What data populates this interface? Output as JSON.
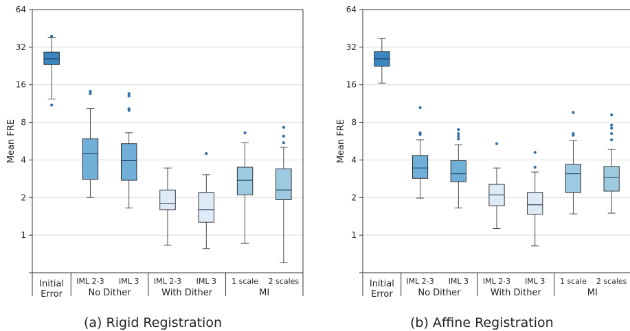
{
  "captions": [
    "(a) Rigid Registration",
    "(b) Affine Registration"
  ],
  "chart_data": [
    {
      "type": "box",
      "title": "",
      "ylabel": "Mean FRE",
      "yscale": "log2",
      "ylim": [
        0.5,
        64
      ],
      "yticks": [
        1,
        2,
        4,
        8,
        16,
        32,
        64
      ],
      "grid": "y",
      "categories": [
        "Initial\nError",
        "IML 2-3",
        "IML 3",
        "IML 2-3",
        "IML 3",
        "1 scale",
        "2 scales"
      ],
      "groups": [
        {
          "label": "",
          "span": [
            0,
            0
          ]
        },
        {
          "label": "No Dither",
          "span": [
            1,
            2
          ]
        },
        {
          "label": "With Dither",
          "span": [
            3,
            4
          ]
        },
        {
          "label": "MI",
          "span": [
            5,
            6
          ]
        }
      ],
      "boxes": [
        {
          "whislo": 12.3,
          "q1": 23.2,
          "med": 25.8,
          "q3": 29.2,
          "whishi": 38.3,
          "fliers": [
            11.0,
            39.2
          ],
          "color": "#3b86c0"
        },
        {
          "whislo": 2.0,
          "q1": 2.8,
          "med": 4.5,
          "q3": 5.9,
          "whishi": 10.3,
          "fliers": [
            13.6,
            14.2
          ],
          "color": "#6fafd8"
        },
        {
          "whislo": 1.65,
          "q1": 2.75,
          "med": 3.95,
          "q3": 5.4,
          "whishi": 6.6,
          "fliers": [
            10.0,
            10.3,
            13.0,
            13.6
          ],
          "color": "#6fafd8"
        },
        {
          "whislo": 0.83,
          "q1": 1.6,
          "med": 1.8,
          "q3": 2.3,
          "whishi": 3.45,
          "fliers": [],
          "color": "#deebf7"
        },
        {
          "whislo": 0.78,
          "q1": 1.27,
          "med": 1.6,
          "q3": 2.2,
          "whishi": 3.05,
          "fliers": [
            4.5
          ],
          "color": "#deebf7"
        },
        {
          "whislo": 0.86,
          "q1": 2.1,
          "med": 2.75,
          "q3": 3.5,
          "whishi": 5.5,
          "fliers": [
            6.6
          ],
          "color": "#9ecae1"
        },
        {
          "whislo": 0.6,
          "q1": 1.92,
          "med": 2.3,
          "q3": 3.4,
          "whishi": 5.05,
          "fliers": [
            5.5,
            6.2,
            7.3
          ],
          "color": "#9ecae1"
        }
      ]
    },
    {
      "type": "box",
      "title": "",
      "ylabel": "Mean FRE",
      "yscale": "log2",
      "ylim": [
        0.5,
        64
      ],
      "yticks": [
        1,
        2,
        4,
        8,
        16,
        32,
        64
      ],
      "grid": "y",
      "categories": [
        "Initial\nError",
        "IML 2-3",
        "IML 3",
        "IML 2-3",
        "IML 3",
        "1 scale",
        "2 scales"
      ],
      "groups": [
        {
          "label": "",
          "span": [
            0,
            0
          ]
        },
        {
          "label": "No Dither",
          "span": [
            1,
            2
          ]
        },
        {
          "label": "With Dither",
          "span": [
            3,
            4
          ]
        },
        {
          "label": "MI",
          "span": [
            5,
            6
          ]
        }
      ],
      "boxes": [
        {
          "whislo": 16.5,
          "q1": 22.5,
          "med": 25.8,
          "q3": 29.5,
          "whishi": 37.5,
          "fliers": [],
          "color": "#3b86c0"
        },
        {
          "whislo": 1.98,
          "q1": 2.85,
          "med": 3.45,
          "q3": 4.35,
          "whishi": 5.8,
          "fliers": [
            6.4,
            6.6,
            10.5
          ],
          "color": "#6fafd8"
        },
        {
          "whislo": 1.65,
          "q1": 2.68,
          "med": 3.1,
          "q3": 3.95,
          "whishi": 5.3,
          "fliers": [
            5.9,
            6.2,
            6.5,
            7.0
          ],
          "color": "#6fafd8"
        },
        {
          "whislo": 1.13,
          "q1": 1.72,
          "med": 2.1,
          "q3": 2.55,
          "whishi": 3.45,
          "fliers": [
            5.4
          ],
          "color": "#deebf7"
        },
        {
          "whislo": 0.82,
          "q1": 1.47,
          "med": 1.75,
          "q3": 2.2,
          "whishi": 3.2,
          "fliers": [
            3.5,
            4.6
          ],
          "color": "#deebf7"
        },
        {
          "whislo": 1.48,
          "q1": 2.2,
          "med": 3.1,
          "q3": 3.7,
          "whishi": 5.7,
          "fliers": [
            6.3,
            6.5,
            9.6
          ],
          "color": "#9ecae1"
        },
        {
          "whislo": 1.5,
          "q1": 2.25,
          "med": 2.9,
          "q3": 3.55,
          "whishi": 4.85,
          "fliers": [
            5.8,
            6.5,
            7.2,
            7.6,
            9.2
          ],
          "color": "#9ecae1"
        }
      ]
    }
  ]
}
